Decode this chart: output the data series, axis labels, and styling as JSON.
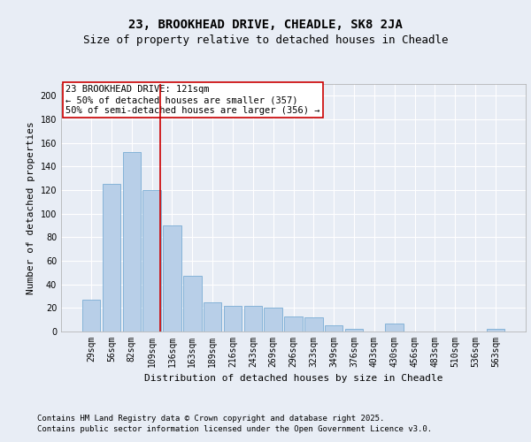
{
  "title1": "23, BROOKHEAD DRIVE, CHEADLE, SK8 2JA",
  "title2": "Size of property relative to detached houses in Cheadle",
  "xlabel": "Distribution of detached houses by size in Cheadle",
  "ylabel": "Number of detached properties",
  "categories": [
    "29sqm",
    "56sqm",
    "82sqm",
    "109sqm",
    "136sqm",
    "163sqm",
    "189sqm",
    "216sqm",
    "243sqm",
    "269sqm",
    "296sqm",
    "323sqm",
    "349sqm",
    "376sqm",
    "403sqm",
    "430sqm",
    "456sqm",
    "483sqm",
    "510sqm",
    "536sqm",
    "563sqm"
  ],
  "values": [
    27,
    125,
    152,
    120,
    90,
    47,
    25,
    22,
    22,
    20,
    13,
    12,
    5,
    2,
    0,
    7,
    0,
    0,
    0,
    0,
    2
  ],
  "bar_color": "#b8cfe8",
  "bar_edge_color": "#7aadd4",
  "vline_color": "#cc0000",
  "vline_x": 3.43,
  "annotation_text1": "23 BROOKHEAD DRIVE: 121sqm",
  "annotation_text2": "← 50% of detached houses are smaller (357)",
  "annotation_text3": "50% of semi-detached houses are larger (356) →",
  "footnote1": "Contains HM Land Registry data © Crown copyright and database right 2025.",
  "footnote2": "Contains public sector information licensed under the Open Government Licence v3.0.",
  "ylim": [
    0,
    210
  ],
  "yticks": [
    0,
    20,
    40,
    60,
    80,
    100,
    120,
    140,
    160,
    180,
    200
  ],
  "bg_color": "#e8edf5",
  "plot_bg_color": "#e8edf5",
  "grid_color": "#ffffff",
  "title1_fontsize": 10,
  "title2_fontsize": 9,
  "xlabel_fontsize": 8,
  "ylabel_fontsize": 8,
  "tick_fontsize": 7,
  "annotation_fontsize": 7.5,
  "footnote_fontsize": 6.5
}
